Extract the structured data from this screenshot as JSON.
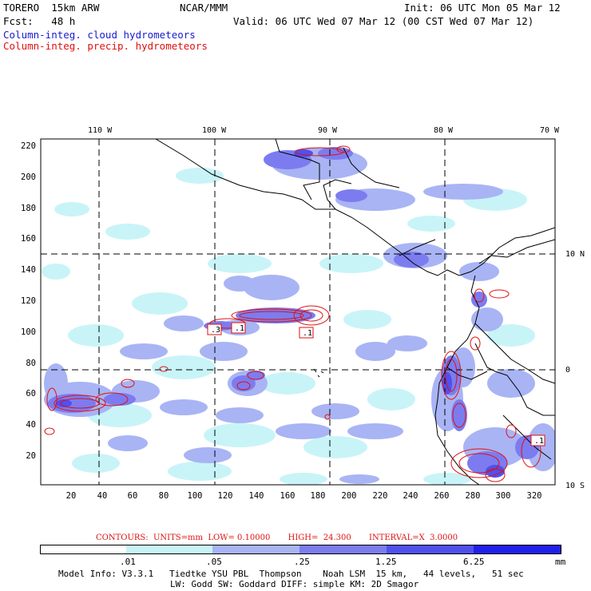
{
  "header": {
    "model_line": "TORERO  15km ARW",
    "org": "NCAR/MMM",
    "init": "Init: 06 UTC Mon 05 Mar 12",
    "fcst": "Fcst:   48 h",
    "valid": "Valid: 06 UTC Wed 07 Mar 12 (00 CST Wed 07 Mar 12)",
    "field_cloud": "Column-integ. cloud hydrometeors",
    "field_precip": "Column-integ. precip. hydrometeors"
  },
  "map": {
    "top_lon_labels": [
      "110 W",
      "100 W",
      "90 W",
      "80 W",
      "70 W"
    ],
    "right_lat_labels": [
      "10 N",
      "0",
      "10 S"
    ],
    "y_ticks": [
      "220",
      "200",
      "180",
      "160",
      "140",
      "120",
      "100",
      "80",
      "60",
      "40",
      "20"
    ],
    "x_ticks": [
      "20",
      "40",
      "60",
      "80",
      "100",
      "120",
      "140",
      "160",
      "180",
      "200",
      "220",
      "240",
      "260",
      "280",
      "300",
      "320"
    ],
    "contour_labels": [
      ".3",
      ".1",
      ".1",
      ".1"
    ],
    "colors": {
      "land_outline": "#000000",
      "cloud_fill": "#8080f0",
      "precip_contour": "#e01010",
      "grid": "#000000"
    }
  },
  "contours_info": "CONTOURS:  UNITS=mm  LOW= 0.10000       HIGH=  24.300       INTERVAL=X  3.0000",
  "colorbar": {
    "labels": [
      ".01",
      ".05",
      ".25",
      "1.25",
      "6.25"
    ],
    "unit": "mm",
    "colors": [
      "#ffffff",
      "#c8f4f8",
      "#a8b4f4",
      "#7c7cf0",
      "#5050ee",
      "#2020ea"
    ]
  },
  "footer": {
    "line1": "Model Info: V3.3.1   Tiedtke YSU PBL  Thompson    Noah LSM  15 km,   44 levels,   51 sec",
    "line2": "LW: Godd SW: Goddard DIFF: simple KM: 2D Smagor"
  }
}
